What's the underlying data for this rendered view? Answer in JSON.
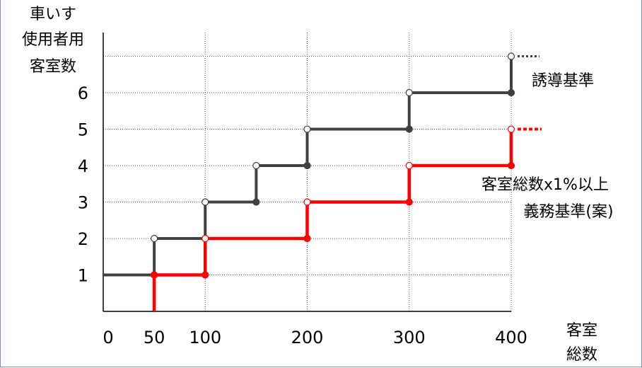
{
  "chart_data": {
    "type": "line",
    "step": true,
    "ylabel_lines": [
      "車いす",
      "使用者用",
      "客室数"
    ],
    "xlabel_lines": [
      "客室",
      "総数"
    ],
    "x_ticks": [
      "0",
      "50",
      "100",
      "200",
      "300",
      "400"
    ],
    "y_ticks": [
      "1",
      "2",
      "3",
      "4",
      "5",
      "6"
    ],
    "xlim": [
      0,
      400
    ],
    "ylim": [
      0,
      7
    ],
    "grid": true,
    "series": [
      {
        "name": "誘導基準",
        "color": "#404040",
        "segments": [
          {
            "x": [
              0,
              50
            ],
            "y": 1
          },
          {
            "x": [
              50,
              100
            ],
            "y": 2
          },
          {
            "x": [
              100,
              150
            ],
            "y": 3
          },
          {
            "x": [
              150,
              200
            ],
            "y": 4
          },
          {
            "x": [
              200,
              300
            ],
            "y": 5
          },
          {
            "x": [
              300,
              400
            ],
            "y": 6
          }
        ],
        "extension_y": 7
      },
      {
        "name": "客室総数x1%以上 義務基準(案)",
        "color": "#ff0000",
        "segments": [
          {
            "x": [
              50,
              100
            ],
            "y": 1
          },
          {
            "x": [
              100,
              200
            ],
            "y": 2
          },
          {
            "x": [
              200,
              300
            ],
            "y": 3
          },
          {
            "x": [
              300,
              400
            ],
            "y": 4
          }
        ],
        "extension_y": 5
      }
    ],
    "annotations": {
      "guidance": "誘導基準",
      "obligation_line1": "客室総数x1%以上",
      "obligation_line2": "義務基準(案)"
    }
  }
}
